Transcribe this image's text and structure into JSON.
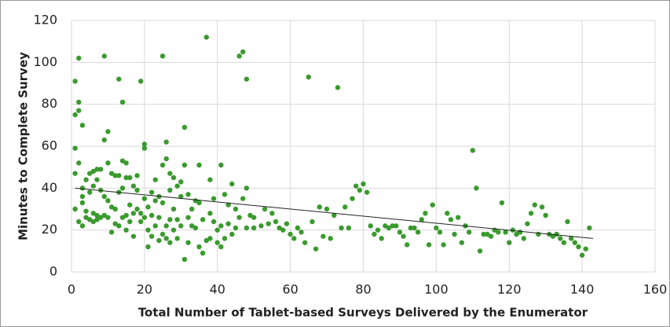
{
  "chart_data": {
    "type": "scatter",
    "x_label": "Total Number of Tablet-based Surveys Delivered by the Enumerator",
    "y_label": "Minutes to Complete  Survey",
    "color": "#3a9a2e",
    "x": [
      1,
      1,
      1,
      1,
      1,
      2,
      2,
      2,
      2,
      2,
      3,
      3,
      3,
      3,
      3,
      4,
      4,
      4,
      5,
      5,
      5,
      6,
      6,
      6,
      6,
      7,
      7,
      7,
      7,
      8,
      8,
      8,
      9,
      9,
      9,
      9,
      10,
      10,
      10,
      10,
      11,
      11,
      11,
      12,
      12,
      12,
      13,
      13,
      13,
      13,
      14,
      14,
      14,
      14,
      15,
      15,
      15,
      15,
      16,
      16,
      16,
      17,
      17,
      17,
      18,
      18,
      18,
      19,
      19,
      19,
      20,
      20,
      20,
      20,
      21,
      21,
      21,
      22,
      22,
      22,
      23,
      23,
      23,
      24,
      24,
      24,
      25,
      25,
      25,
      25,
      26,
      26,
      26,
      26,
      27,
      27,
      27,
      27,
      28,
      28,
      28,
      29,
      29,
      29,
      30,
      30,
      30,
      31,
      31,
      31,
      32,
      32,
      32,
      33,
      33,
      34,
      34,
      35,
      35,
      35,
      36,
      36,
      37,
      37,
      38,
      38,
      38,
      39,
      39,
      40,
      40,
      41,
      41,
      41,
      42,
      42,
      43,
      43,
      44,
      44,
      45,
      45,
      46,
      46,
      47,
      47,
      48,
      48,
      48,
      49,
      50,
      50,
      52,
      53,
      54,
      55,
      56,
      57,
      58,
      59,
      60,
      61,
      62,
      63,
      64,
      65,
      66,
      67,
      68,
      69,
      70,
      71,
      72,
      73,
      74,
      75,
      76,
      77,
      78,
      79,
      80,
      81,
      82,
      83,
      84,
      85,
      86,
      87,
      88,
      89,
      90,
      91,
      92,
      93,
      94,
      95,
      96,
      97,
      98,
      99,
      100,
      101,
      102,
      103,
      104,
      105,
      106,
      107,
      108,
      109,
      110,
      111,
      112,
      113,
      114,
      115,
      116,
      117,
      118,
      119,
      120,
      121,
      122,
      123,
      124,
      125,
      126,
      127,
      128,
      129,
      130,
      131,
      132,
      133,
      134,
      135,
      136,
      137,
      138,
      139,
      140,
      141,
      142
    ],
    "values": [
      91,
      75,
      59,
      47,
      30,
      102,
      81,
      77,
      52,
      24,
      70,
      40,
      36,
      33,
      22,
      29,
      44,
      26,
      47,
      38,
      25,
      48,
      41,
      28,
      24,
      49,
      44,
      27,
      25,
      49,
      39,
      26,
      103,
      63,
      36,
      27,
      67,
      52,
      34,
      26,
      47,
      31,
      19,
      46,
      30,
      23,
      92,
      46,
      38,
      22,
      81,
      53,
      40,
      26,
      52,
      45,
      27,
      20,
      45,
      32,
      24,
      41,
      28,
      17,
      46,
      39,
      30,
      91,
      28,
      24,
      61,
      59,
      35,
      26,
      31,
      20,
      12,
      38,
      27,
      17,
      44,
      34,
      22,
      36,
      26,
      15,
      103,
      51,
      33,
      18,
      62,
      54,
      22,
      16,
      47,
      39,
      25,
      14,
      45,
      30,
      20,
      41,
      25,
      16,
      43,
      36,
      22,
      69,
      51,
      6,
      37,
      26,
      14,
      30,
      22,
      34,
      21,
      51,
      33,
      12,
      25,
      9,
      112,
      15,
      44,
      28,
      16,
      35,
      24,
      20,
      14,
      51,
      22,
      12,
      37,
      16,
      32,
      23,
      42,
      18,
      30,
      21,
      103,
      26,
      105,
      35,
      92,
      40,
      21,
      27,
      26,
      21,
      22,
      30,
      23,
      28,
      24,
      21,
      20,
      23,
      18,
      16,
      21,
      19,
      14,
      93,
      24,
      11,
      31,
      17,
      30,
      16,
      27,
      88,
      21,
      31,
      21,
      35,
      41,
      39,
      42,
      38,
      22,
      18,
      20,
      16,
      22,
      21,
      22,
      22,
      19,
      17,
      13,
      21,
      21,
      19,
      25,
      28,
      13,
      32,
      21,
      19,
      13,
      28,
      25,
      18,
      26,
      14,
      22,
      19,
      58,
      40,
      10,
      18,
      18,
      17,
      20,
      19,
      33,
      19,
      14,
      20,
      18,
      19,
      16,
      23,
      28,
      32,
      18,
      31,
      27,
      18,
      17,
      18,
      16,
      14,
      24,
      16,
      14,
      12,
      8,
      11,
      21
    ],
    "trendline": {
      "x": [
        1,
        143
      ],
      "values": [
        40,
        16
      ],
      "color": "#222222"
    },
    "xlim": [
      0,
      160
    ],
    "xticks": [
      0,
      20,
      40,
      60,
      80,
      100,
      120,
      140,
      160
    ],
    "ylim": [
      0,
      120
    ],
    "yticks": [
      0,
      20,
      40,
      60,
      80,
      100,
      120
    ],
    "grid": true
  }
}
